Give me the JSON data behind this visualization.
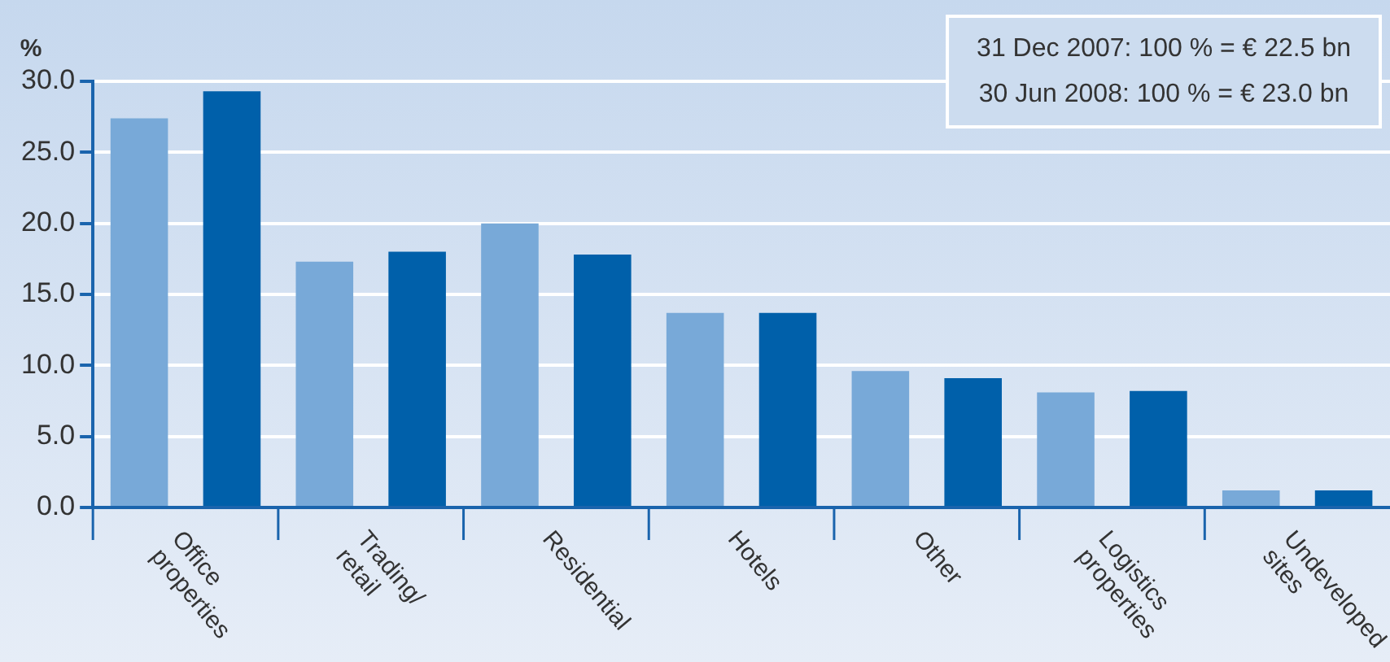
{
  "chart_data": {
    "type": "bar",
    "ylabel": "%",
    "categories": [
      "Office properties",
      "Trading/ retail",
      "Residential",
      "Hotels",
      "Other",
      "Logistics properties",
      "Undeveloped sites"
    ],
    "series": [
      {
        "color": "#78a9d8",
        "values": [
          27.4,
          17.3,
          20.0,
          13.7,
          9.6,
          8.1,
          1.2
        ]
      },
      {
        "color": "#0060aa",
        "values": [
          29.3,
          18.0,
          17.8,
          13.7,
          9.1,
          8.2,
          1.2
        ]
      }
    ],
    "ylim": [
      0,
      30
    ],
    "yticks": [
      {
        "value": 0,
        "label": "0.0"
      },
      {
        "value": 5,
        "label": "5.0"
      },
      {
        "value": 10,
        "label": "10.0"
      },
      {
        "value": 15,
        "label": "15.0"
      },
      {
        "value": 20,
        "label": "20.0"
      },
      {
        "value": 25,
        "label": "25.0"
      },
      {
        "value": 30,
        "label": "30.0"
      }
    ],
    "grid": "y",
    "legend": false,
    "annotations": [
      "31 Dec 2007: 100 % = € 22.5 bn",
      "30 Jun 2008: 100 % = € 23.0 bn"
    ]
  }
}
